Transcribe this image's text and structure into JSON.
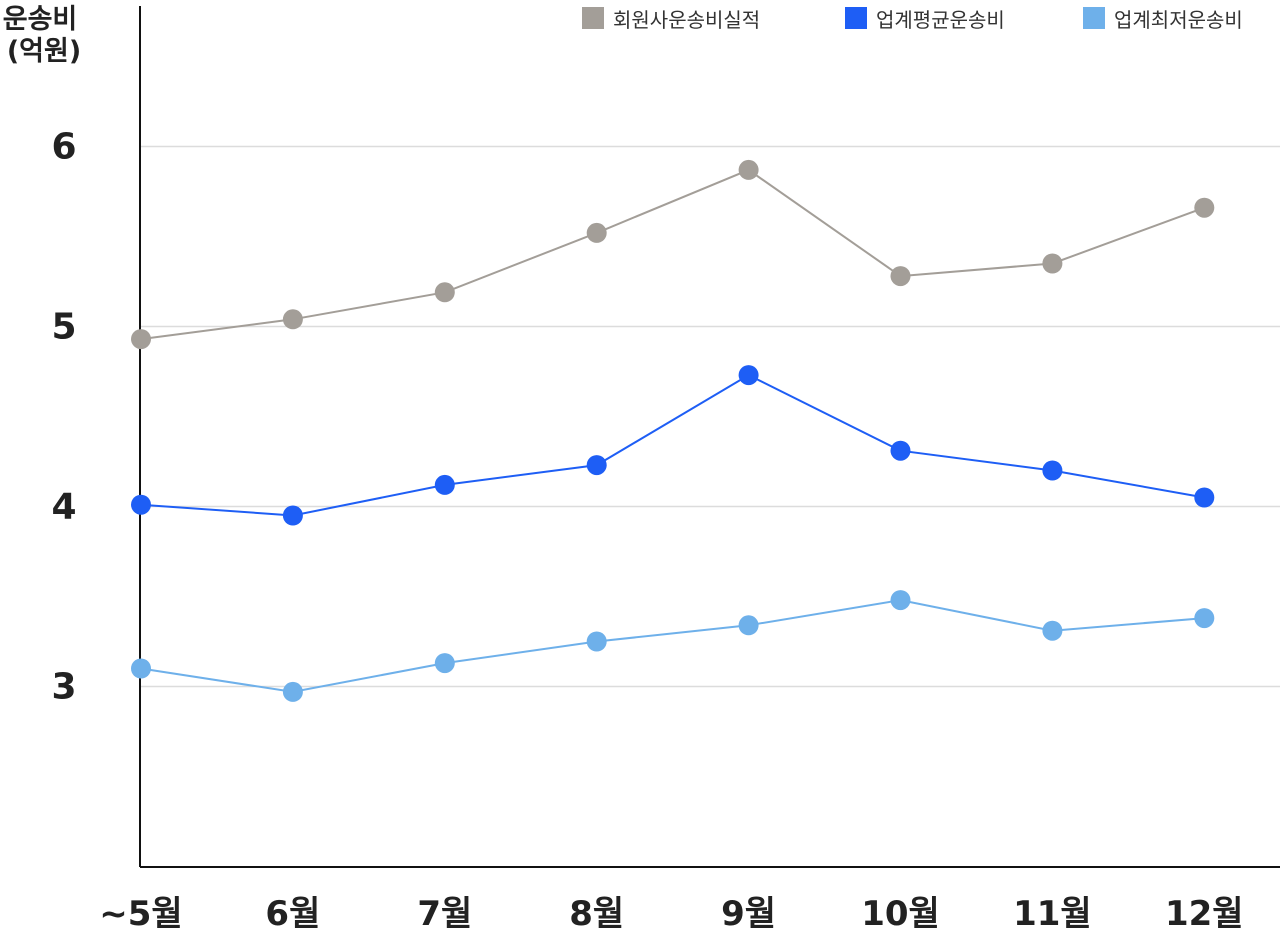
{
  "chart_data": {
    "type": "line",
    "ylabel_line1": "운송비",
    "ylabel_line2": "(억원)",
    "categories": [
      "~5월",
      "6월",
      "7월",
      "8월",
      "9월",
      "10월",
      "11월",
      "12월"
    ],
    "yticks": [
      3,
      4,
      5,
      6
    ],
    "ylim": [
      2.0,
      6.8
    ],
    "grid": true,
    "legend_position": "top-right",
    "series": [
      {
        "name": "회원사운송비실적",
        "color": "#a39e98",
        "values": [
          4.93,
          5.04,
          5.19,
          5.52,
          5.87,
          5.28,
          5.35,
          5.66
        ]
      },
      {
        "name": "업계평균운송비",
        "color": "#1e5ef5",
        "values": [
          4.01,
          3.95,
          4.12,
          4.23,
          4.73,
          4.31,
          4.2,
          4.05
        ]
      },
      {
        "name": "업계최저운송비",
        "color": "#6eb0ea",
        "values": [
          3.1,
          2.97,
          3.13,
          3.25,
          3.34,
          3.48,
          3.31,
          3.38
        ]
      }
    ]
  }
}
